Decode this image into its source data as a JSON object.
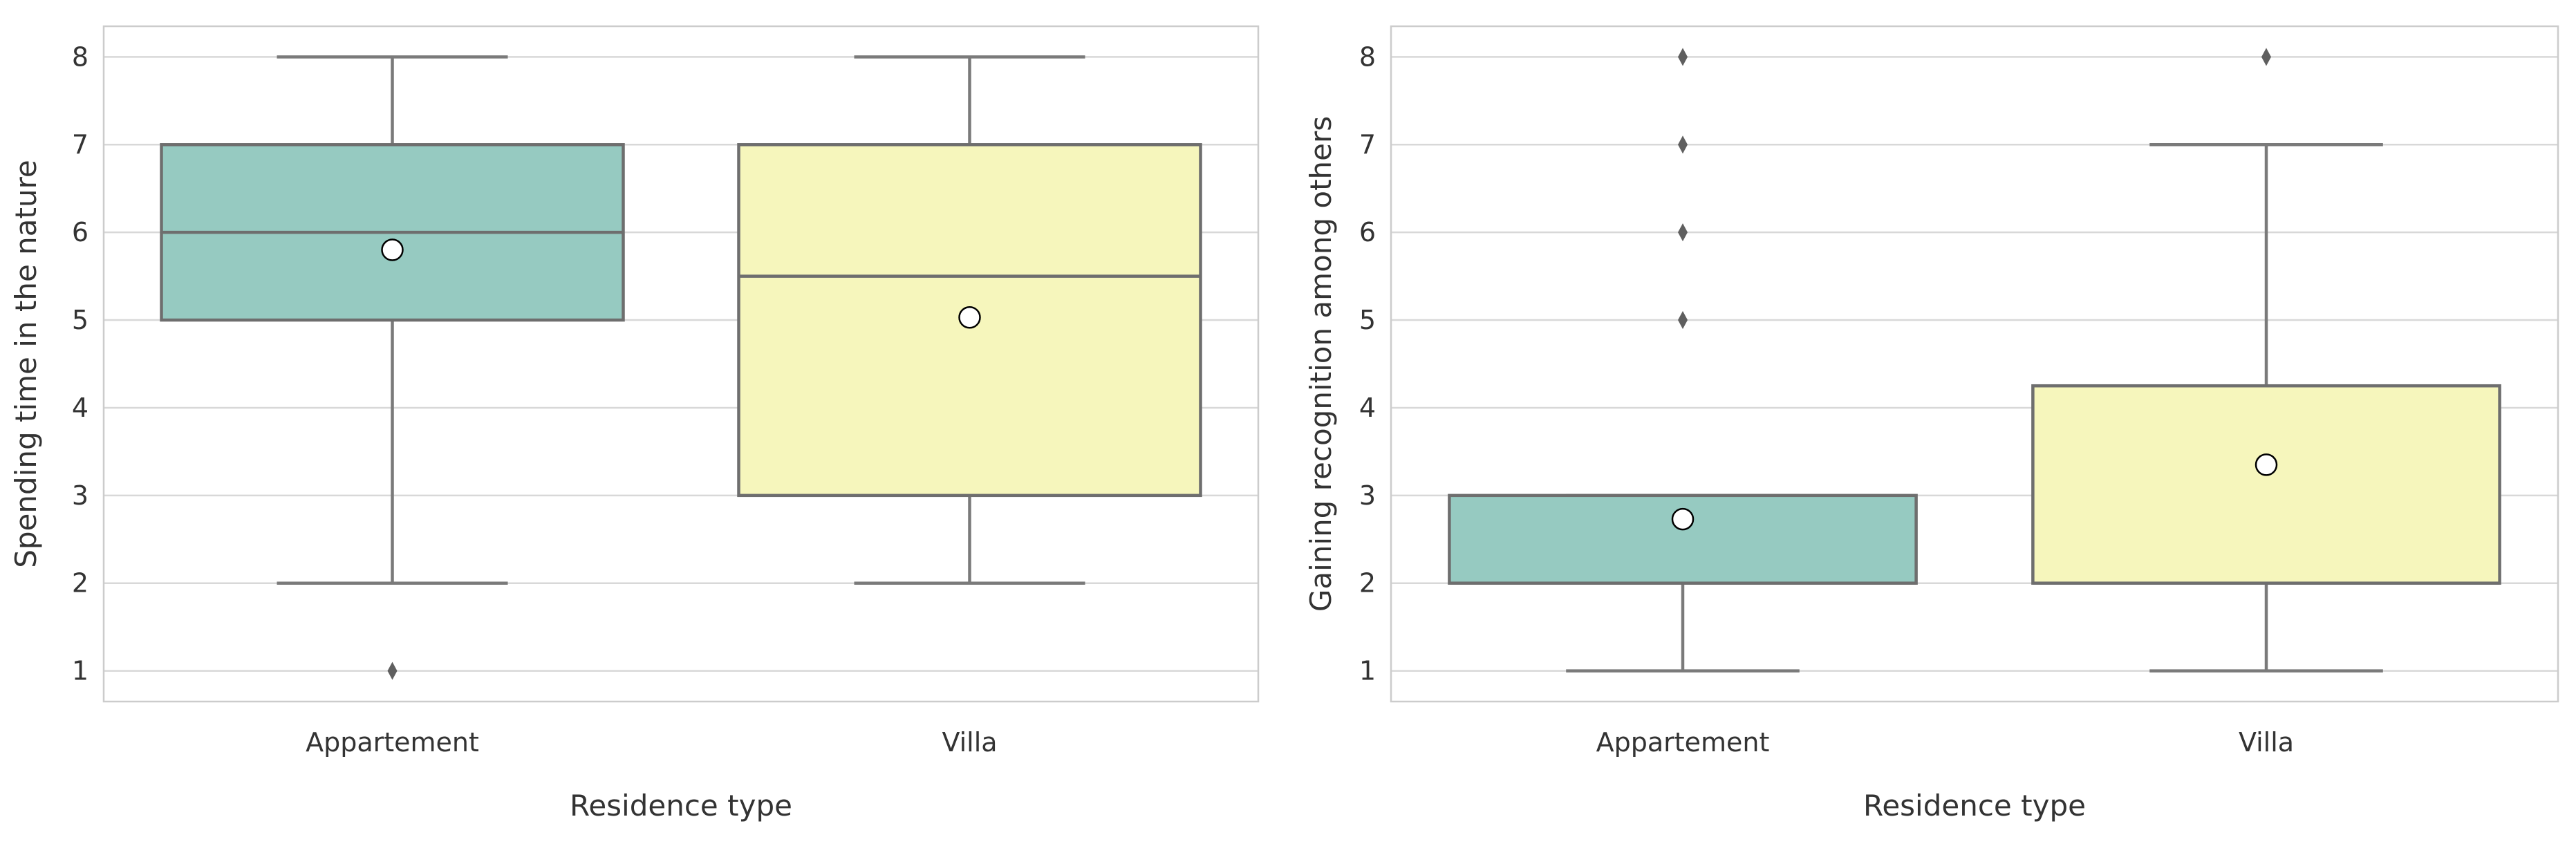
{
  "chart_data": [
    {
      "type": "box",
      "xlabel": "Residence type",
      "ylabel": "Spending time in the nature",
      "categories": [
        "Appartement",
        "Villa"
      ],
      "yticks": [
        1,
        2,
        3,
        4,
        5,
        6,
        7,
        8
      ],
      "ylim": [
        0.65,
        8.35
      ],
      "grid": true,
      "colors": [
        "#96cac1",
        "#f6f6bc"
      ],
      "boxes": [
        {
          "category": "Appartement",
          "whisker_low": 2,
          "q1": 5,
          "median": 6,
          "q3": 7,
          "whisker_high": 8,
          "mean": 5.8,
          "fliers": [
            1
          ]
        },
        {
          "category": "Villa",
          "whisker_low": 2,
          "q1": 3,
          "median": 5.5,
          "q3": 7,
          "whisker_high": 8,
          "mean": 5.03,
          "fliers": []
        }
      ]
    },
    {
      "type": "box",
      "xlabel": "Residence type",
      "ylabel": "Gaining recognition among others",
      "categories": [
        "Appartement",
        "Villa"
      ],
      "yticks": [
        1,
        2,
        3,
        4,
        5,
        6,
        7,
        8
      ],
      "ylim": [
        0.65,
        8.35
      ],
      "grid": true,
      "colors": [
        "#96cac1",
        "#f6f6bc"
      ],
      "boxes": [
        {
          "category": "Appartement",
          "whisker_low": 1,
          "q1": 2,
          "median": 2,
          "q3": 3,
          "whisker_high": 3,
          "mean": 2.73,
          "fliers": [
            5,
            6,
            7,
            8
          ]
        },
        {
          "category": "Villa",
          "whisker_low": 1,
          "q1": 2,
          "median": 2,
          "q3": 4.25,
          "whisker_high": 7,
          "mean": 3.35,
          "fliers": [
            8
          ]
        }
      ]
    }
  ]
}
